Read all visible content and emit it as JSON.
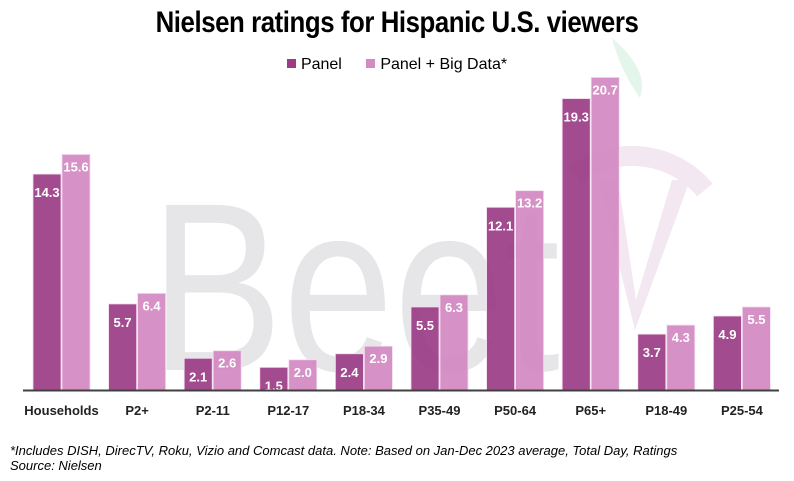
{
  "colors": {
    "panel": "#9b3c85",
    "big_data": "#d389c1",
    "axis": "#404040",
    "watermark_grey": "#e6e6e8",
    "watermark_pink": "#f3e7f1",
    "watermark_green": "#e4f5ec"
  },
  "watermark_text": "BeetTV",
  "footnote": {
    "line1": "*Includes DISH, DirecTV, Roku, Vizio and Comcast data. Note: Based on Jan-Dec 2023 average,  Total Day, Ratings",
    "line2": "Source: Nielsen"
  },
  "chart_data": {
    "type": "bar",
    "title": "Nielsen ratings for Hispanic U.S. viewers",
    "xlabel": "",
    "ylabel": "",
    "ylim": [
      0,
      22
    ],
    "grid": false,
    "legend_position": "top-center",
    "categories": [
      "Households",
      "P2+",
      "P2-11",
      "P12-17",
      "P18-34",
      "P35-49",
      "P50-64",
      "P65+",
      "P18-49",
      "P25-54"
    ],
    "series": [
      {
        "name": "Panel",
        "values": [
          14.3,
          5.7,
          2.1,
          1.5,
          2.4,
          5.5,
          12.1,
          19.3,
          3.7,
          4.9
        ]
      },
      {
        "name": "Panel + Big Data*",
        "values": [
          15.6,
          6.4,
          2.6,
          2.0,
          2.9,
          6.3,
          13.2,
          20.7,
          4.3,
          5.5
        ]
      }
    ],
    "data_labels": true
  }
}
